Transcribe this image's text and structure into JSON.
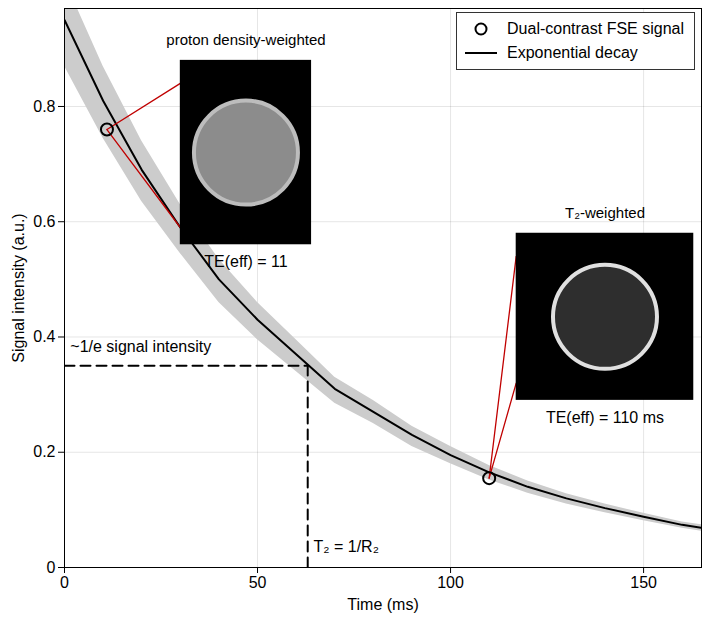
{
  "chart_data": {
    "type": "line",
    "x_label": "Time (ms)",
    "y_label": "Signal intensity (a.u.)",
    "xlim": [
      0,
      165
    ],
    "ylim": [
      0,
      0.97
    ],
    "xticks": [
      0,
      50,
      100,
      150
    ],
    "yticks": [
      0,
      0.2,
      0.4,
      0.6,
      0.8
    ],
    "grid": true,
    "legend": "top-right",
    "series": [
      {
        "name": "Dual-contrast FSE signal",
        "type": "scatter",
        "marker": "circle",
        "color": "#000000",
        "x": [
          11,
          110
        ],
        "values": [
          0.76,
          0.155
        ]
      },
      {
        "name": "Exponential decay",
        "type": "line",
        "color": "#000000",
        "x": [
          0,
          10,
          20,
          30,
          40,
          50,
          60,
          70,
          80,
          90,
          100,
          110,
          120,
          130,
          140,
          150,
          160,
          165
        ],
        "values": [
          0.95,
          0.81,
          0.69,
          0.59,
          0.5,
          0.43,
          0.37,
          0.31,
          0.27,
          0.23,
          0.195,
          0.165,
          0.14,
          0.12,
          0.103,
          0.088,
          0.074,
          0.069
        ],
        "band_lower": [
          0.87,
          0.745,
          0.635,
          0.545,
          0.46,
          0.395,
          0.34,
          0.285,
          0.25,
          0.21,
          0.18,
          0.152,
          0.129,
          0.11,
          0.095,
          0.081,
          0.068,
          0.063
        ],
        "band_upper": [
          1.02,
          0.87,
          0.74,
          0.63,
          0.535,
          0.46,
          0.395,
          0.33,
          0.29,
          0.245,
          0.21,
          0.177,
          0.15,
          0.128,
          0.11,
          0.094,
          0.079,
          0.074
        ]
      }
    ],
    "annotations": {
      "one_over_e": {
        "label": "~1/e signal intensity",
        "y": 0.35,
        "x": 63,
        "x_label": "T₂ = 1/R₂"
      },
      "insets": [
        {
          "title": "proton density-weighted",
          "caption": "TE(eff) = 11"
        },
        {
          "title": "T₂-weighted",
          "caption": "TE(eff) = 110 ms"
        }
      ]
    }
  }
}
